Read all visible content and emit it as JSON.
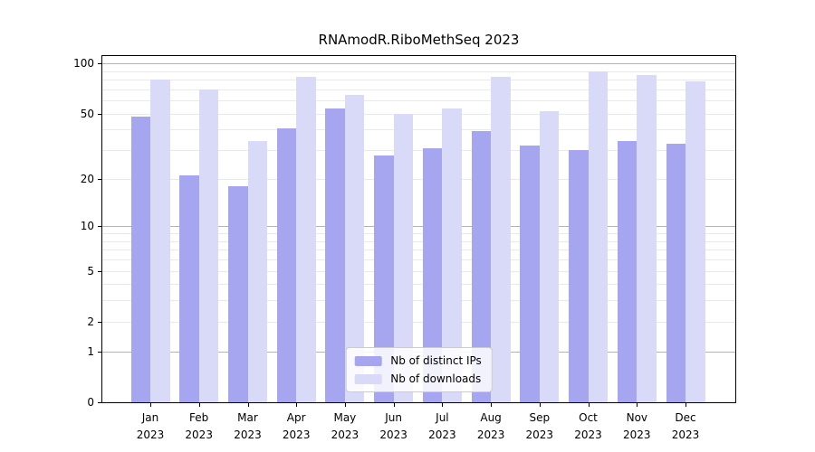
{
  "title": "RNAmodR.RiboMethSeq 2023",
  "colors": {
    "ips_bar": "#a5a5f0",
    "downloads_bar": "#d9d9f8",
    "grid_major": "#b3b3b3",
    "grid_minor": "#e9e9e9",
    "spine": "#000000",
    "legend_border": "#cccccc",
    "background": "#ffffff"
  },
  "legend": {
    "items": [
      {
        "key": "ips_bar",
        "label": "Nb of distinct IPs"
      },
      {
        "key": "downloads_bar",
        "label": "Nb of downloads"
      }
    ]
  },
  "x_axis": {
    "months": [
      "Jan",
      "Feb",
      "Mar",
      "Apr",
      "May",
      "Jun",
      "Jul",
      "Aug",
      "Sep",
      "Oct",
      "Nov",
      "Dec"
    ],
    "year": "2023"
  },
  "y_axis": {
    "scale": "log1p",
    "ticks": [
      0,
      1,
      2,
      5,
      10,
      20,
      50,
      100
    ]
  },
  "chart_data": {
    "type": "bar",
    "title": "RNAmodR.RiboMethSeq 2023",
    "categories": [
      "Jan 2023",
      "Feb 2023",
      "Mar 2023",
      "Apr 2023",
      "May 2023",
      "Jun 2023",
      "Jul 2023",
      "Aug 2023",
      "Sep 2023",
      "Oct 2023",
      "Nov 2023",
      "Dec 2023"
    ],
    "series": [
      {
        "name": "Nb of distinct IPs",
        "values": [
          48,
          21,
          18,
          41,
          54,
          28,
          31,
          39,
          32,
          30,
          34,
          33
        ]
      },
      {
        "name": "Nb of downloads",
        "values": [
          80,
          70,
          34,
          83,
          65,
          50,
          54,
          83,
          52,
          90,
          85,
          78
        ]
      }
    ],
    "xlabel": "",
    "ylabel": "",
    "yscale": "log1p",
    "yticks": [
      0,
      1,
      2,
      5,
      10,
      20,
      50,
      100
    ],
    "minor_gridlines": [
      2,
      3,
      4,
      5,
      6,
      7,
      8,
      9,
      20,
      30,
      40,
      50,
      60,
      70,
      80,
      90
    ],
    "major_gridlines": [
      1,
      10,
      100
    ],
    "ylim": [
      0,
      111
    ],
    "grid": true,
    "legend_position": "lower center"
  }
}
